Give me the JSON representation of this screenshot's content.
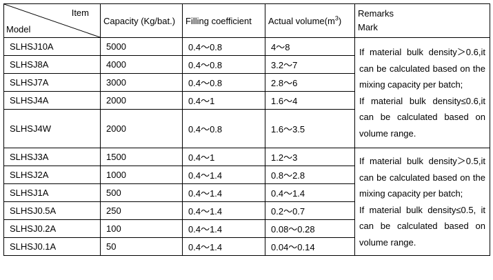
{
  "header": {
    "item": "Item",
    "model": "Model",
    "capacity": "Capacity (Kg/bat.)",
    "filling": "Filling coefficient",
    "volume": "Actual volume(m",
    "volume_sup": "3",
    "volume_close": ")",
    "remarks": "Remarks",
    "mark": "Mark"
  },
  "rows": [
    {
      "model": "SLHSJ10A",
      "capacity": "5000",
      "filling": "0.4～0.8",
      "volume": "4～8"
    },
    {
      "model": "SLHSJ8A",
      "capacity": "4000",
      "filling": "0.4～0.8",
      "volume": "3.2～7"
    },
    {
      "model": "SLHSJ7A",
      "capacity": "3000",
      "filling": "0.4～0.8",
      "volume": "2.8～6"
    },
    {
      "model": "SLHSJ4A",
      "capacity": "2000",
      "filling": "0.4～1",
      "volume": "1.6～4"
    },
    {
      "model": "SLHSJ4W",
      "capacity": "2000",
      "filling": "0.4～0.8",
      "volume": "1.6～3.5"
    },
    {
      "model": "SLHSJ3A",
      "capacity": "1500",
      "filling": "0.4～1",
      "volume": "1.2～3"
    },
    {
      "model": "SLHSJ2A",
      "capacity": "1000",
      "filling": "0.4～1.4",
      "volume": "0.8～2.8"
    },
    {
      "model": "SLHSJ1A",
      "capacity": "500",
      "filling": "0.4～1.4",
      "volume": "0.4～1.4"
    },
    {
      "model": "SLHSJ0.5A",
      "capacity": "250",
      "filling": "0.4～1.4",
      "volume": "0.2～0.7"
    },
    {
      "model": "SLHSJ0.2A",
      "capacity": "100",
      "filling": "0.4～1.4",
      "volume": "0.08～0.28"
    },
    {
      "model": "SLHSJ0.1A",
      "capacity": "50",
      "filling": "0.4～1.4",
      "volume": "0.04～0.14"
    }
  ],
  "remarks": [
    {
      "line1": "If material bulk density＞0.6,it can be calculated based on the mixing capacity per batch;",
      "line2": "If material bulk density≤0.6,it can be calculated based on volume range."
    },
    {
      "line1": "If material bulk density＞0.5,it can be calculated based on the mixing capacity per batch;",
      "line2": "If material bulk density≤0.5, it can be calculated based on volume range."
    }
  ]
}
